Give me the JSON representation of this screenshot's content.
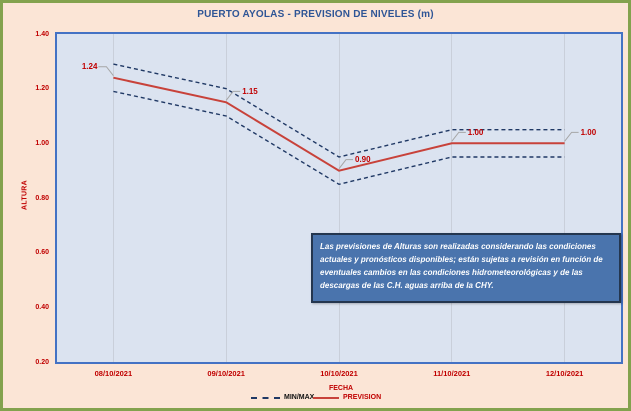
{
  "title": "PUERTO AYOLAS - PREVISION DE NIVELES (m)",
  "chart_data": {
    "type": "line",
    "title": "PUERTO AYOLAS - PREVISION DE NIVELES (m)",
    "categories": [
      "08/10/2021",
      "09/10/2021",
      "10/10/2021",
      "11/10/2021",
      "12/10/2021"
    ],
    "series": [
      {
        "name": "MAX",
        "values": [
          1.29,
          1.2,
          0.95,
          1.05,
          1.05
        ],
        "style": "dashed",
        "color": "#1f3864"
      },
      {
        "name": "MIN",
        "values": [
          1.19,
          1.1,
          0.85,
          0.95,
          0.95
        ],
        "style": "dashed",
        "color": "#1f3864"
      },
      {
        "name": "PREVISION",
        "values": [
          1.24,
          1.15,
          0.9,
          1.0,
          1.0
        ],
        "style": "solid",
        "color": "#c8423a"
      }
    ],
    "data_labels": {
      "series": "PREVISION",
      "values": [
        "1.24",
        "1.15",
        "0.90",
        "1.00",
        "1.00"
      ]
    },
    "xlabel": "FECHA",
    "ylabel": "ALTURA",
    "ylim": [
      0.2,
      1.4
    ],
    "yticks": [
      "1.40",
      "1.20",
      "1.00",
      "0.80",
      "0.60",
      "0.40",
      "0.20"
    ],
    "grid": "vertical-only",
    "legend_position": "bottom",
    "legend": [
      {
        "label": "MIN/MAX",
        "style": "dashed",
        "color": "#1f3864"
      },
      {
        "label": "PREVISION",
        "style": "solid",
        "color": "#c8423a"
      }
    ]
  },
  "note_box": {
    "text": "Las previsiones de Alturas son realizadas considerando las condiciones actuales y pronósticos disponibles;  están sujetas a revisión en función de eventuales cambios en las condiciones hidrometeorológicas y de las descargas de las C.H. aguas arriba de la CHY."
  },
  "colors": {
    "frame_border": "#83a24e",
    "background": "#fbe5d6",
    "plot_bg": "#dbe3f0",
    "plot_border": "#4472c4",
    "gridline": "#c9cfda",
    "axis_text": "#c00000",
    "title_text": "#2e5596",
    "dashed_line": "#1f3864",
    "prevision_line": "#c8423a",
    "leader_line": "#a6a6a6",
    "note_bg": "#4a74ad",
    "note_border": "#24364f"
  }
}
